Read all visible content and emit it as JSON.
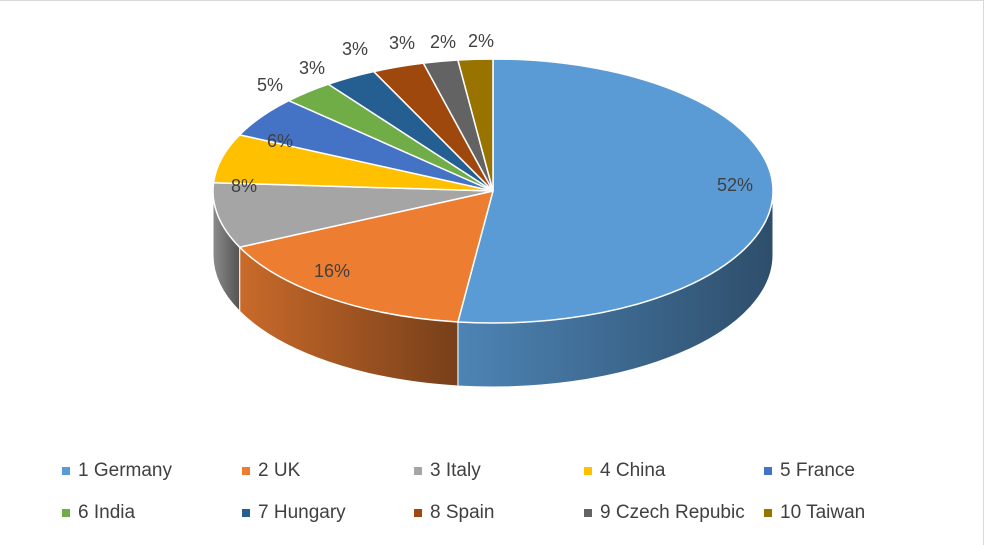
{
  "chart_data": {
    "type": "pie",
    "style": "3d",
    "categories": [
      "1 Germany",
      "2 UK",
      "3 Italy",
      "4 China",
      "5 France",
      "6 India",
      "7 Hungary",
      "8 Spain",
      "9 Czech Repubic",
      "10 Taiwan"
    ],
    "values": [
      52,
      16,
      8,
      6,
      5,
      3,
      3,
      3,
      2,
      2
    ],
    "data_labels": [
      "52%",
      "16%",
      "8%",
      "6%",
      "5%",
      "3%",
      "3%",
      "3%",
      "2%",
      "2%"
    ],
    "colors": [
      "#5b9bd5",
      "#ed7d31",
      "#a5a5a5",
      "#ffc000",
      "#4472c4",
      "#70ad47",
      "#255e91",
      "#9e480e",
      "#636363",
      "#997300"
    ],
    "legend_position": "bottom"
  }
}
